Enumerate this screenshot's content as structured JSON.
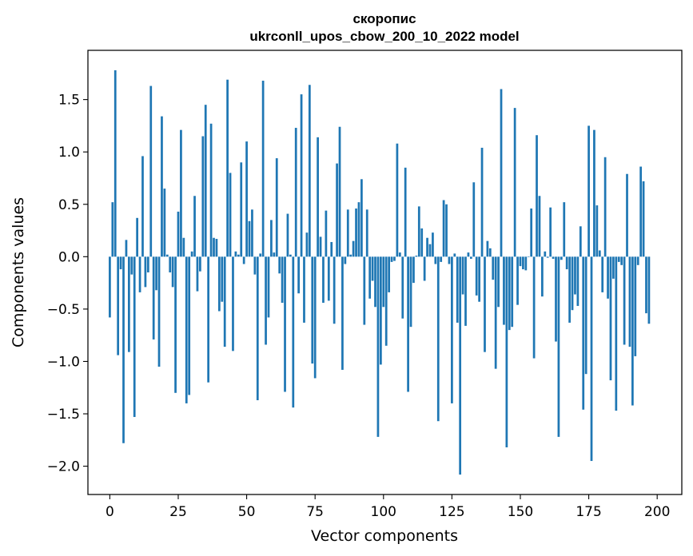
{
  "chart_data": {
    "type": "bar",
    "title_line1": "скоропис",
    "title_line2": "ukrconll_upos_cbow_200_10_2022 model",
    "xlabel": "Vector components",
    "ylabel": "Components values",
    "xlim": [
      -8,
      209
    ],
    "ylim": [
      -2.27,
      1.97
    ],
    "x_ticks": [
      {
        "value": 0,
        "label": "0"
      },
      {
        "value": 25,
        "label": "25"
      },
      {
        "value": 50,
        "label": "50"
      },
      {
        "value": 75,
        "label": "75"
      },
      {
        "value": 100,
        "label": "100"
      },
      {
        "value": 125,
        "label": "125"
      },
      {
        "value": 150,
        "label": "150"
      },
      {
        "value": 175,
        "label": "175"
      },
      {
        "value": 200,
        "label": "200"
      }
    ],
    "y_ticks": [
      {
        "value": 1.5,
        "label": "1.5"
      },
      {
        "value": 1.0,
        "label": "1.0"
      },
      {
        "value": 0.5,
        "label": "0.5"
      },
      {
        "value": 0.0,
        "label": "0.0"
      },
      {
        "value": -0.5,
        "label": "−0.5"
      },
      {
        "value": -1.0,
        "label": "−1.0"
      },
      {
        "value": -1.5,
        "label": "−1.5"
      },
      {
        "value": -2.0,
        "label": "−2.0"
      }
    ],
    "bar_color": "#1f77b4",
    "grid": false,
    "values": [
      -0.58,
      0.52,
      1.78,
      -0.94,
      -0.12,
      -1.78,
      0.16,
      -0.91,
      -0.17,
      -1.53,
      0.37,
      -0.34,
      0.96,
      -0.29,
      -0.15,
      1.63,
      -0.79,
      -0.32,
      -1.05,
      1.34,
      0.65,
      0.02,
      -0.15,
      -0.29,
      -1.3,
      0.43,
      1.21,
      0.18,
      -1.4,
      -1.32,
      0.05,
      0.58,
      -0.33,
      -0.14,
      1.15,
      1.45,
      -1.2,
      1.27,
      0.18,
      0.17,
      -0.52,
      -0.43,
      -0.86,
      1.69,
      0.8,
      -0.9,
      0.05,
      0.02,
      0.9,
      -0.07,
      1.1,
      0.34,
      0.45,
      -0.17,
      -1.37,
      0.03,
      1.68,
      -0.84,
      -0.58,
      0.35,
      0.04,
      0.94,
      -0.16,
      -0.44,
      -1.29,
      0.41,
      0.02,
      -1.44,
      1.23,
      -0.35,
      1.55,
      -0.63,
      0.23,
      1.64,
      -1.02,
      -1.16,
      1.14,
      0.19,
      -0.44,
      0.44,
      -0.42,
      0.14,
      -0.64,
      0.89,
      1.24,
      -1.08,
      -0.07,
      0.45,
      0.02,
      0.15,
      0.46,
      0.52,
      0.74,
      -0.65,
      0.45,
      -0.4,
      -0.23,
      -0.48,
      -1.72,
      -1.03,
      -0.48,
      -0.85,
      -0.34,
      -0.05,
      -0.04,
      1.08,
      0.04,
      -0.59,
      0.85,
      -1.29,
      -0.67,
      -0.25,
      0.01,
      0.48,
      0.27,
      -0.23,
      0.18,
      0.12,
      0.23,
      -0.07,
      -1.57,
      -0.05,
      0.54,
      0.5,
      -0.07,
      -1.4,
      0.03,
      -0.63,
      -2.08,
      -0.36,
      -0.66,
      0.04,
      -0.02,
      0.71,
      -0.37,
      -0.43,
      1.04,
      -0.91,
      0.15,
      0.08,
      -0.22,
      -1.07,
      -0.48,
      1.6,
      -0.65,
      -1.82,
      -0.7,
      -0.67,
      1.42,
      -0.46,
      -0.09,
      -0.12,
      -0.13,
      0.0,
      0.46,
      -0.97,
      1.16,
      0.58,
      -0.38,
      0.05,
      -0.01,
      0.47,
      -0.02,
      -0.81,
      -1.72,
      -0.03,
      0.52,
      -0.12,
      -0.63,
      -0.51,
      -0.36,
      -0.47,
      0.29,
      -1.46,
      -1.12,
      1.25,
      -1.95,
      1.21,
      0.49,
      0.06,
      -0.34,
      0.95,
      -0.4,
      -1.18,
      -0.21,
      -1.47,
      -0.05,
      -0.08,
      -0.84,
      0.79,
      -0.86,
      -1.42,
      -0.95,
      -0.08,
      0.86,
      0.72,
      -0.54,
      -0.64
    ]
  }
}
